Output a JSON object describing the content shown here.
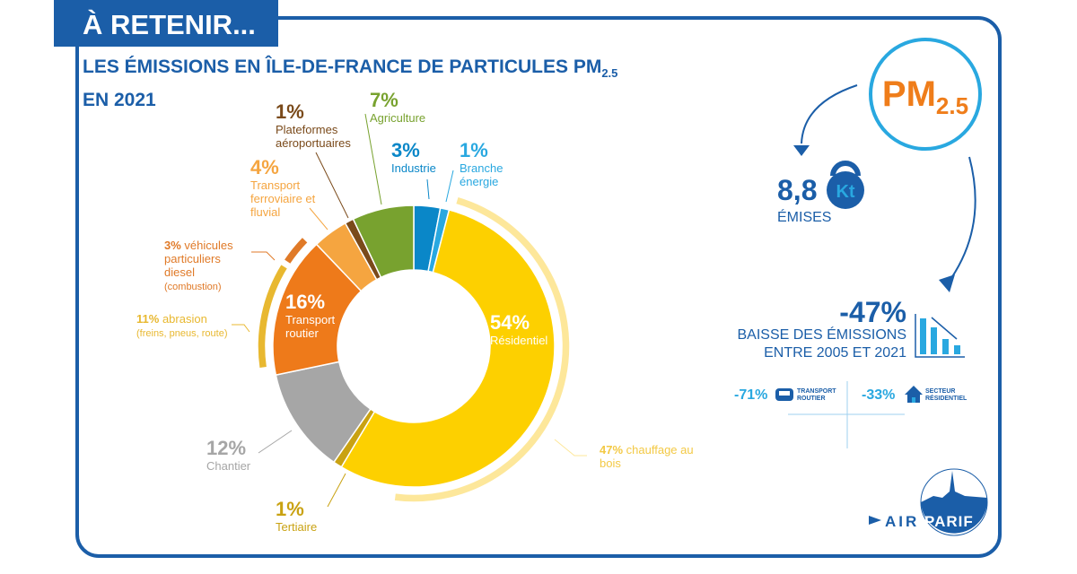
{
  "banner": "À RETENIR...",
  "title": {
    "line1": "LES ÉMISSIONS EN ÎLE-DE-FRANCE DE PARTICULES PM",
    "sub": "2.5",
    "line2": "EN 2021"
  },
  "chart_data": {
    "type": "pie",
    "variant": "donut",
    "slices": [
      {
        "label": "Industrie",
        "value": 3,
        "pct": "3%",
        "color": "#0a87c8"
      },
      {
        "label": "Branche énergie",
        "value": 1,
        "pct": "1%",
        "color": "#29a8e0"
      },
      {
        "label": "Résidentiel",
        "value": 54,
        "pct": "54%",
        "color": "#fdd000"
      },
      {
        "label": "Tertiaire",
        "value": 1,
        "pct": "1%",
        "color": "#c9a212"
      },
      {
        "label": "Chantier",
        "value": 12,
        "pct": "12%",
        "color": "#a6a6a6"
      },
      {
        "label": "Transport routier",
        "value": 16,
        "pct": "16%",
        "color": "#ee7a1a"
      },
      {
        "label": "Transport ferroviaire et fluvial",
        "value": 4,
        "pct": "4%",
        "color": "#f5a540"
      },
      {
        "label": "Plateformes aéroportuaires",
        "value": 1,
        "pct": "1%",
        "color": "#7a4a1a"
      },
      {
        "label": "Agriculture",
        "value": 7,
        "pct": "7%",
        "color": "#78a22f"
      }
    ],
    "sub_breakdowns": [
      {
        "parent": "Résidentiel",
        "pct": "47%",
        "label": "chauffage au bois",
        "value": 47,
        "color": "#fde79a"
      },
      {
        "parent": "Transport routier",
        "pct": "11%",
        "label": "abrasion",
        "detail": "(freins, pneus, route)",
        "value": 11,
        "color": "#e8b830"
      },
      {
        "parent": "Transport routier",
        "pct": "3%",
        "label": "véhicules particuliers diesel",
        "detail": "(combustion)",
        "value": 3,
        "color": "#e07a28"
      }
    ]
  },
  "side": {
    "pm": "PM",
    "pm_sub": "2.5",
    "emis_value": "8,8",
    "emis_unit": "Kt",
    "emis_label": "ÉMISES",
    "drop_value": "-47%",
    "drop_line1": "BAISSE DES ÉMISSIONS",
    "drop_line2": "ENTRE 2005 ET 2021",
    "transport_value": "-71%",
    "transport_line1": "TRANSPORT",
    "transport_line2": "ROUTIER",
    "resid_value": "-33%",
    "resid_line1": "SECTEUR",
    "resid_line2": "RÉSIDENTIEL"
  },
  "logo": {
    "text1": "AIR",
    "text2": "PARIF"
  },
  "colors": {
    "brand": "#1b5ea8",
    "accent": "#29a8e0",
    "pm": "#ef7d1a"
  }
}
